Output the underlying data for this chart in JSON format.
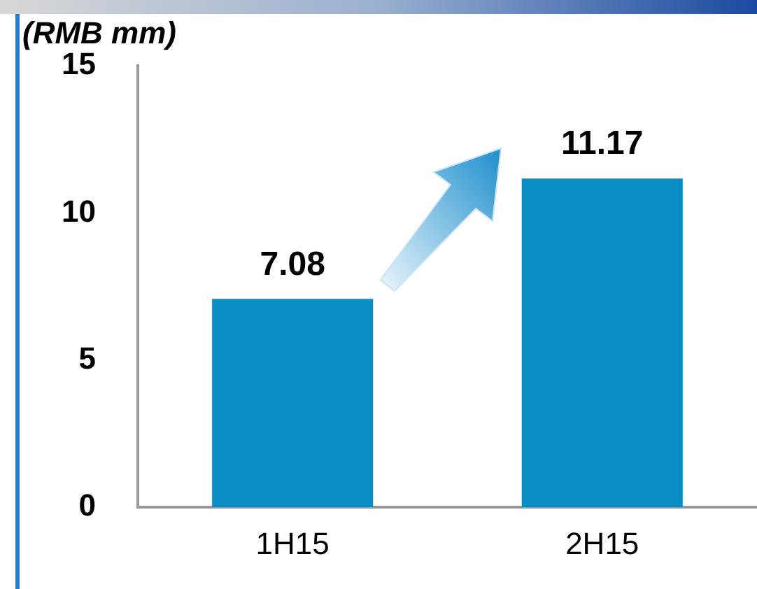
{
  "chart_data": {
    "type": "bar",
    "ylabel": "(RMB mm)",
    "categories": [
      "1H15",
      "2H15"
    ],
    "values": [
      7.08,
      11.17
    ],
    "color": "#0a8cc4",
    "ylim": [
      0,
      15
    ],
    "yticks": [
      0,
      5,
      10,
      15
    ],
    "grid": false,
    "legend": false,
    "data_labels": true
  }
}
